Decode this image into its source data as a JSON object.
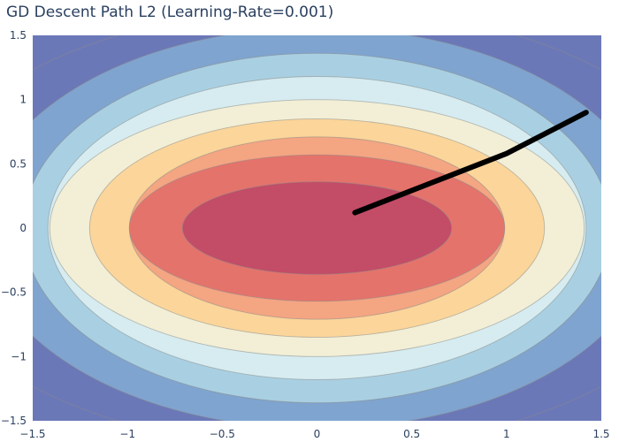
{
  "chart_data": {
    "type": "contour",
    "title": "GD Descent Path L2 (Learning-Rate=0.001)",
    "xlabel": "",
    "ylabel": "",
    "xlim": [
      -1.5,
      1.5
    ],
    "ylim": [
      -1.5,
      1.5
    ],
    "x_ticks": [
      -1.5,
      -1,
      -0.5,
      0,
      0.5,
      1,
      1.5
    ],
    "x_tick_labels": [
      "−1.5",
      "−1",
      "−0.5",
      "0",
      "0.5",
      "1",
      "1.5"
    ],
    "y_ticks": [
      -1.5,
      -1,
      -0.5,
      0,
      0.5,
      1,
      1.5
    ],
    "y_tick_labels": [
      "−1.5",
      "−1",
      "−0.5",
      "0",
      "0.5",
      "1",
      "1.5"
    ],
    "grid": false,
    "legend": "none",
    "contour_levels": [
      {
        "x_semi": 2.15,
        "y_semi": 1.72,
        "color": "#6b78b8"
      },
      {
        "x_semi": 1.78,
        "y_semi": 1.56,
        "color": "#7fa4cf"
      },
      {
        "x_semi": 1.55,
        "y_semi": 1.36,
        "color": "#a9d0e2"
      },
      {
        "x_semi": 1.42,
        "y_semi": 1.18,
        "color": "#d6ecf0"
      },
      {
        "x_semi": 1.41,
        "y_semi": 1.0,
        "color": "#f2efd6"
      },
      {
        "x_semi": 1.2,
        "y_semi": 0.85,
        "color": "#fbd59a"
      },
      {
        "x_semi": 0.99,
        "y_semi": 0.71,
        "color": "#f4a582"
      },
      {
        "x_semi": 0.99,
        "y_semi": 0.57,
        "color": "#e4736b"
      },
      {
        "x_semi": 0.71,
        "y_semi": 0.36,
        "color": "#c34c67"
      }
    ],
    "series": [
      {
        "values": [
          [
            0.2,
            0.12
          ],
          [
            0.6,
            0.35
          ],
          [
            1.0,
            0.58
          ],
          [
            1.42,
            0.9
          ]
        ],
        "color": "#000000"
      }
    ]
  }
}
